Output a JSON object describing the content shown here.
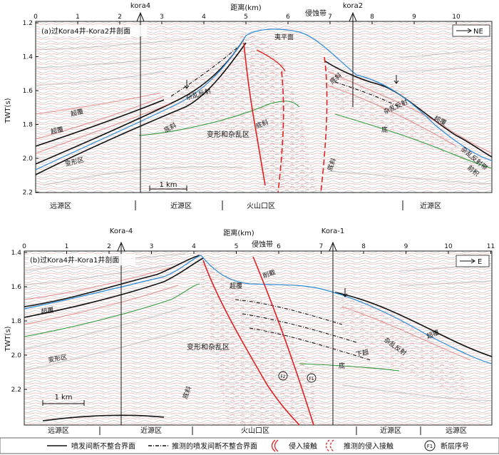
{
  "panel_a": {
    "title": "(a)过Kora4井-Kora2井剖面",
    "xaxis_label": "距离(km)",
    "x_ticks": [
      "0",
      "1",
      "2",
      "3",
      "4",
      "5",
      "6",
      "7",
      "8",
      "9",
      "10"
    ],
    "y_ticks": [
      "1.2",
      "1.4",
      "1.6",
      "1.8",
      "2.0",
      "2.2"
    ],
    "yaxis_label": "TWT(s)",
    "wells": [
      "kora4",
      "kora2"
    ],
    "erosion_label": "侵蚀带",
    "direction": "NE",
    "scale_bar": "1 km",
    "annotations": [
      "夷平面",
      "超覆",
      "超覆",
      "变形区",
      "杂乱反射",
      "底斜",
      "变形和杂乱区",
      "底斜",
      "底斜",
      "杂乱反射",
      "超覆",
      "底",
      "底斜",
      "杂乱反射带",
      "前积"
    ],
    "zones": [
      "远源区",
      "近源区",
      "火山口区",
      "近源区"
    ]
  },
  "panel_b": {
    "title": "(b)过Kora4井-Kora1井剖面",
    "xaxis_label": "距离(km)",
    "x_ticks": [
      "0",
      "1",
      "2",
      "3",
      "4",
      "5",
      "6",
      "7",
      "8",
      "9",
      "10",
      "11"
    ],
    "y_ticks": [
      "1.4",
      "1.6",
      "1.8",
      "2.0",
      "2.2"
    ],
    "yaxis_label": "TWT(s)",
    "wells": [
      "Kora-4",
      "Kora-1"
    ],
    "erosion_label": "侵蚀带",
    "direction": "E",
    "scale_bar": "1 km",
    "annotations": [
      "削截",
      "超覆",
      "超覆",
      "变形区",
      "变形和杂乱区",
      "底斜",
      "F2",
      "F1",
      "底",
      "杂乱反射",
      "超覆",
      "下超"
    ],
    "zones": [
      "远源区",
      "近源区",
      "火山口区",
      "近源区",
      "远源区"
    ]
  },
  "legend": {
    "items": [
      {
        "label": "喷发间断不整合界面",
        "icon": "solid-line-icon"
      },
      {
        "label": "推测的喷发间断不整合界面",
        "icon": "dashed-line-icon"
      },
      {
        "label": "侵入接触",
        "icon": "solid-red-arc-icon"
      },
      {
        "label": "推测的侵入接触",
        "icon": "dashed-red-arc-icon"
      },
      {
        "label": "断层序号",
        "icon": "fault-number-icon"
      }
    ],
    "fault_example": "F1"
  }
}
